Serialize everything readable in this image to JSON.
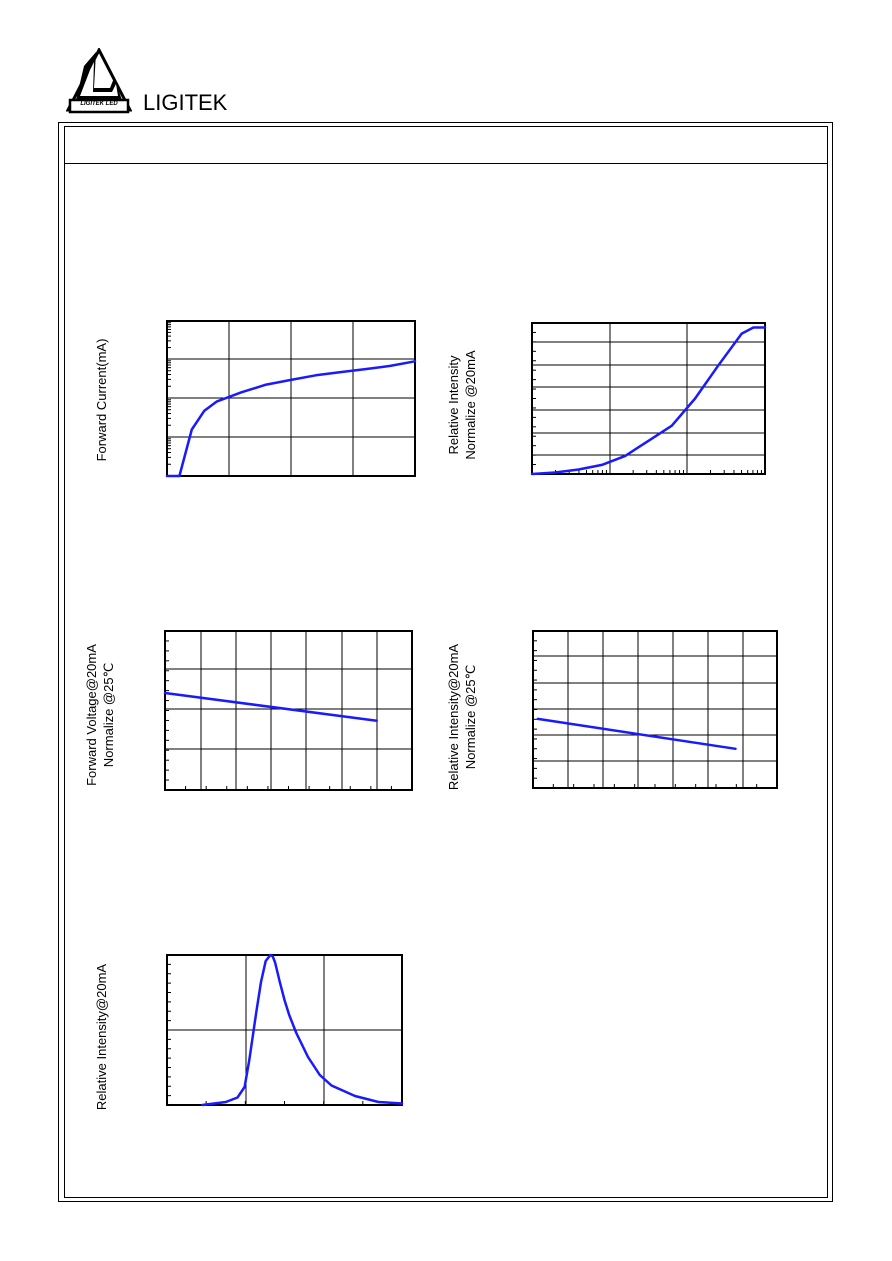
{
  "brand": {
    "name": "LIGITEK",
    "logo_text": "LIGITEK LED"
  },
  "colors": {
    "curve": "#1a1aff",
    "grid": "#000000",
    "frame": "#000000"
  },
  "chart_data": [
    {
      "id": "forward-current",
      "type": "line",
      "ylabel": [
        "Forward Current(mA)"
      ],
      "y_scale": "log",
      "grid": true,
      "x": [
        0.0,
        0.05,
        0.1,
        0.15,
        0.2,
        0.3,
        0.4,
        0.5,
        0.6,
        0.7,
        0.8,
        0.9,
        1.0
      ],
      "y": [
        0.0,
        0.0,
        0.3,
        0.42,
        0.48,
        0.54,
        0.59,
        0.62,
        0.65,
        0.67,
        0.69,
        0.71,
        0.74
      ]
    },
    {
      "id": "relative-intensity-vs-current",
      "type": "line",
      "ylabel": [
        "Relative Intensity",
        "Normalize @20mA"
      ],
      "y_scale": "linear",
      "grid": true,
      "x": [
        0.0,
        0.1,
        0.2,
        0.3,
        0.4,
        0.5,
        0.6,
        0.7,
        0.8,
        0.9,
        0.95,
        1.0
      ],
      "y": [
        0.0,
        0.01,
        0.03,
        0.06,
        0.12,
        0.22,
        0.32,
        0.5,
        0.72,
        0.93,
        0.97,
        0.97
      ]
    },
    {
      "id": "forward-voltage-vs-temp",
      "type": "line",
      "ylabel": [
        "Forward Voltage@20mA",
        "Normalize @25℃"
      ],
      "y_scale": "linear",
      "grid": true,
      "x": [
        0,
        0.857
      ],
      "y": [
        0.61,
        0.435
      ]
    },
    {
      "id": "relative-intensity-vs-temp",
      "type": "line",
      "ylabel": [
        "Relative Intensity@20mA",
        "Normalize @25℃"
      ],
      "y_scale": "linear",
      "grid": true,
      "x": [
        0.02,
        0.83
      ],
      "y": [
        0.44,
        0.25
      ]
    },
    {
      "id": "spectral-distribution",
      "type": "line",
      "ylabel": [
        "Relative Intensity@20mA"
      ],
      "y_scale": "linear",
      "grid": true,
      "x": [
        0.15,
        0.25,
        0.3,
        0.33,
        0.35,
        0.38,
        0.4,
        0.42,
        0.44,
        0.45,
        0.46,
        0.48,
        0.5,
        0.52,
        0.55,
        0.6,
        0.65,
        0.7,
        0.8,
        0.9,
        1.0
      ],
      "y": [
        0.0,
        0.02,
        0.05,
        0.12,
        0.3,
        0.62,
        0.82,
        0.96,
        1.0,
        0.99,
        0.95,
        0.82,
        0.7,
        0.6,
        0.48,
        0.32,
        0.2,
        0.13,
        0.06,
        0.02,
        0.01
      ]
    }
  ]
}
